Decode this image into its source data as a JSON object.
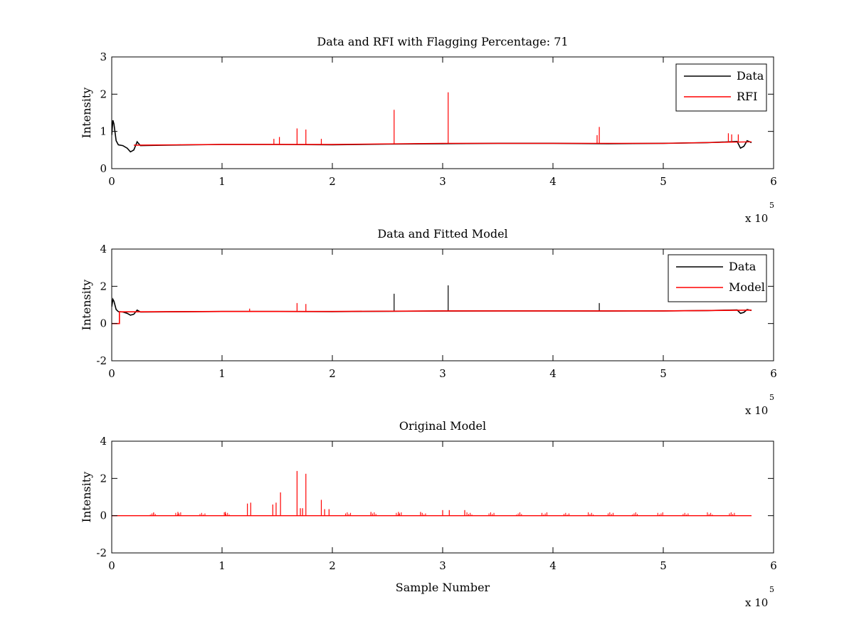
{
  "figure": {
    "background": "#ffffff",
    "colors": {
      "data": "#000000",
      "rfi": "#ff0000",
      "model": "#ff0000",
      "axes": "#000000"
    }
  },
  "chart_data": [
    {
      "id": "panel1",
      "type": "line",
      "title": "Data and RFI with Flagging Percentage: 71",
      "xlabel": "",
      "ylabel": "Intensity",
      "xlim": [
        0,
        6
      ],
      "ylim": [
        0,
        3
      ],
      "x_multiplier_label": "x 10",
      "x_multiplier_exponent": "5",
      "xticks": [
        0,
        1,
        2,
        3,
        4,
        5,
        6
      ],
      "yticks": [
        0,
        1,
        2,
        3
      ],
      "xtick_labels": [
        "0",
        "1",
        "2",
        "3",
        "4",
        "5",
        "6"
      ],
      "ytick_labels": [
        "0",
        "1",
        "2",
        "3"
      ],
      "legend": {
        "placement": "top-right",
        "entries": [
          {
            "label": "Data",
            "color": "#000000"
          },
          {
            "label": "RFI",
            "color": "#ff0000"
          }
        ]
      },
      "series": [
        {
          "name": "Data",
          "color": "#000000",
          "x": [
            0,
            0.01,
            0.02,
            0.04,
            0.06,
            0.1,
            0.14,
            0.17,
            0.2,
            0.23,
            0.26,
            0.5,
            1,
            1.5,
            2,
            2.5,
            3,
            3.5,
            4,
            4.5,
            5,
            5.4,
            5.6,
            5.67,
            5.7,
            5.73,
            5.76,
            5.8
          ],
          "y": [
            0.9,
            1.3,
            1.2,
            0.75,
            0.64,
            0.62,
            0.55,
            0.45,
            0.5,
            0.72,
            0.62,
            0.63,
            0.65,
            0.65,
            0.64,
            0.66,
            0.67,
            0.68,
            0.68,
            0.67,
            0.68,
            0.7,
            0.72,
            0.73,
            0.55,
            0.6,
            0.75,
            0.7
          ]
        },
        {
          "name": "RFI",
          "color": "#ff0000",
          "baseline": {
            "x": [
              0.2,
              1,
              2,
              3,
              4,
              5,
              5.8
            ],
            "y": [
              0.63,
              0.65,
              0.65,
              0.68,
              0.68,
              0.68,
              0.72
            ]
          },
          "spikes": [
            {
              "x": 1.68,
              "y": 1.08
            },
            {
              "x": 1.76,
              "y": 1.05
            },
            {
              "x": 2.56,
              "y": 1.58
            },
            {
              "x": 3.05,
              "y": 2.05
            },
            {
              "x": 4.42,
              "y": 1.12
            },
            {
              "x": 4.4,
              "y": 0.9
            },
            {
              "x": 1.47,
              "y": 0.8
            },
            {
              "x": 1.52,
              "y": 0.85
            },
            {
              "x": 1.9,
              "y": 0.8
            },
            {
              "x": 5.59,
              "y": 0.95
            },
            {
              "x": 5.62,
              "y": 0.92
            },
            {
              "x": 5.68,
              "y": 0.92
            }
          ]
        }
      ]
    },
    {
      "id": "panel2",
      "type": "line",
      "title": "Data and Fitted Model",
      "xlabel": "",
      "ylabel": "Intensity",
      "xlim": [
        0,
        6
      ],
      "ylim": [
        -2,
        4
      ],
      "x_multiplier_label": "x 10",
      "x_multiplier_exponent": "5",
      "xticks": [
        0,
        1,
        2,
        3,
        4,
        5,
        6
      ],
      "yticks": [
        -2,
        0,
        2,
        4
      ],
      "xtick_labels": [
        "0",
        "1",
        "2",
        "3",
        "4",
        "5",
        "6"
      ],
      "ytick_labels": [
        "-2",
        "0",
        "2",
        "4"
      ],
      "legend": {
        "placement": "top-right",
        "entries": [
          {
            "label": "Data",
            "color": "#000000"
          },
          {
            "label": "Model",
            "color": "#ff0000"
          }
        ]
      },
      "series": [
        {
          "name": "Data",
          "color": "#000000",
          "x": [
            0,
            0.01,
            0.02,
            0.04,
            0.06,
            0.1,
            0.14,
            0.17,
            0.2,
            0.23,
            0.26,
            0.5,
            1,
            1.5,
            2,
            2.5,
            3,
            3.5,
            4,
            4.5,
            5,
            5.4,
            5.6,
            5.67,
            5.7,
            5.73,
            5.76,
            5.8
          ],
          "y": [
            0.9,
            1.3,
            1.2,
            0.75,
            0.64,
            0.62,
            0.55,
            0.45,
            0.5,
            0.72,
            0.62,
            0.63,
            0.65,
            0.65,
            0.64,
            0.66,
            0.67,
            0.68,
            0.68,
            0.67,
            0.68,
            0.7,
            0.72,
            0.73,
            0.55,
            0.6,
            0.75,
            0.7
          ],
          "spikes": [
            {
              "x": 2.56,
              "y": 1.6
            },
            {
              "x": 3.05,
              "y": 2.05
            },
            {
              "x": 4.42,
              "y": 1.1
            }
          ]
        },
        {
          "name": "Model",
          "color": "#ff0000",
          "x": [
            0,
            0.07,
            0.07,
            0.2,
            1,
            2,
            3,
            4,
            5,
            5.8
          ],
          "y": [
            0,
            0,
            0.63,
            0.63,
            0.65,
            0.65,
            0.68,
            0.68,
            0.68,
            0.72
          ],
          "spikes": [
            {
              "x": 1.68,
              "y": 1.1
            },
            {
              "x": 1.76,
              "y": 1.05
            },
            {
              "x": 1.25,
              "y": 0.8
            }
          ]
        }
      ]
    },
    {
      "id": "panel3",
      "type": "line",
      "title": "Original Model",
      "xlabel": "Sample Number",
      "ylabel": "Intensity",
      "xlim": [
        0,
        6
      ],
      "ylim": [
        -2,
        4
      ],
      "x_multiplier_label": "x 10",
      "x_multiplier_exponent": "5",
      "xticks": [
        0,
        1,
        2,
        3,
        4,
        5,
        6
      ],
      "yticks": [
        -2,
        0,
        2,
        4
      ],
      "xtick_labels": [
        "0",
        "1",
        "2",
        "3",
        "4",
        "5",
        "6"
      ],
      "ytick_labels": [
        "-2",
        "0",
        "2",
        "4"
      ],
      "series": [
        {
          "name": "",
          "color": "#ff0000",
          "baseline": {
            "x": [
              0,
              5.8
            ],
            "y": [
              0,
              0
            ]
          },
          "spikes": [
            {
              "x": 1.23,
              "y": 0.65
            },
            {
              "x": 1.26,
              "y": 0.7
            },
            {
              "x": 1.46,
              "y": 0.6
            },
            {
              "x": 1.49,
              "y": 0.7
            },
            {
              "x": 1.53,
              "y": 1.25
            },
            {
              "x": 1.68,
              "y": 2.4
            },
            {
              "x": 1.71,
              "y": 0.4
            },
            {
              "x": 1.73,
              "y": 0.4
            },
            {
              "x": 1.76,
              "y": 2.25
            },
            {
              "x": 1.9,
              "y": 0.85
            },
            {
              "x": 1.93,
              "y": 0.35
            },
            {
              "x": 1.97,
              "y": 0.35
            },
            {
              "x": 3.0,
              "y": 0.3
            },
            {
              "x": 3.06,
              "y": 0.3
            },
            {
              "x": 3.2,
              "y": 0.3
            },
            {
              "x": 2.35,
              "y": 0.2
            },
            {
              "x": 2.6,
              "y": 0.2
            },
            {
              "x": 2.8,
              "y": 0.2
            },
            {
              "x": 0.38,
              "y": 0.15
            },
            {
              "x": 0.6,
              "y": 0.2
            },
            {
              "x": 1.03,
              "y": 0.2
            }
          ],
          "small_spike_clusters": [
            0.35,
            0.58,
            0.8,
            1.02,
            2.12,
            2.35,
            2.58,
            2.8,
            3.22,
            3.42,
            3.67,
            3.9,
            4.1,
            4.32,
            4.5,
            4.72,
            4.95,
            5.18,
            5.4,
            5.6
          ]
        }
      ]
    }
  ]
}
